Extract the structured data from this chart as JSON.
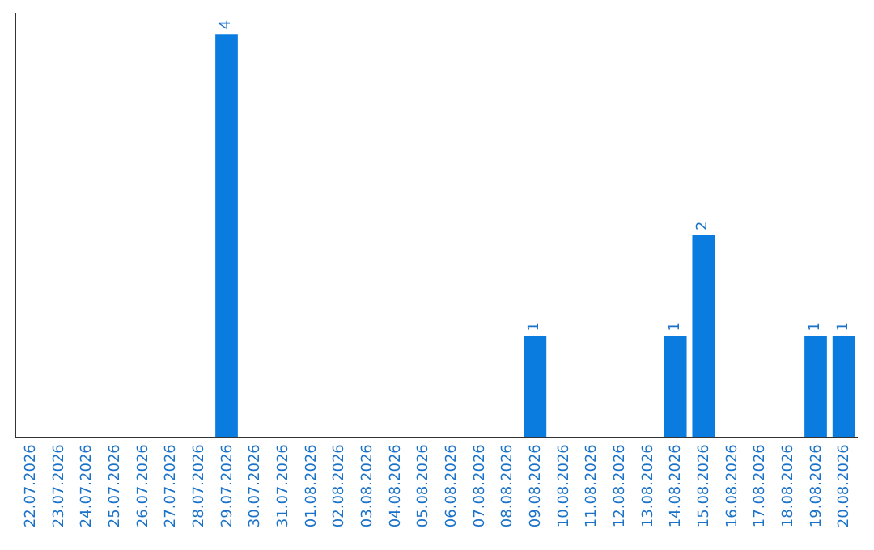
{
  "chart_data": {
    "type": "bar",
    "categories": [
      "22.07.2026",
      "23.07.2026",
      "24.07.2026",
      "25.07.2026",
      "26.07.2026",
      "27.07.2026",
      "28.07.2026",
      "29.07.2026",
      "30.07.2026",
      "31.07.2026",
      "01.08.2026",
      "02.08.2026",
      "03.08.2026",
      "04.08.2026",
      "05.08.2026",
      "06.08.2026",
      "07.08.2026",
      "08.08.2026",
      "09.08.2026",
      "10.08.2026",
      "11.08.2026",
      "12.08.2026",
      "13.08.2026",
      "14.08.2026",
      "15.08.2026",
      "16.08.2026",
      "17.08.2026",
      "18.08.2026",
      "19.08.2026",
      "20.08.2026"
    ],
    "values": [
      null,
      null,
      null,
      null,
      null,
      null,
      null,
      4,
      null,
      null,
      null,
      null,
      null,
      null,
      null,
      null,
      null,
      null,
      1,
      null,
      null,
      null,
      null,
      1,
      2,
      null,
      null,
      null,
      1,
      1
    ],
    "color": "#0a7ce0",
    "data_labels": true
  }
}
